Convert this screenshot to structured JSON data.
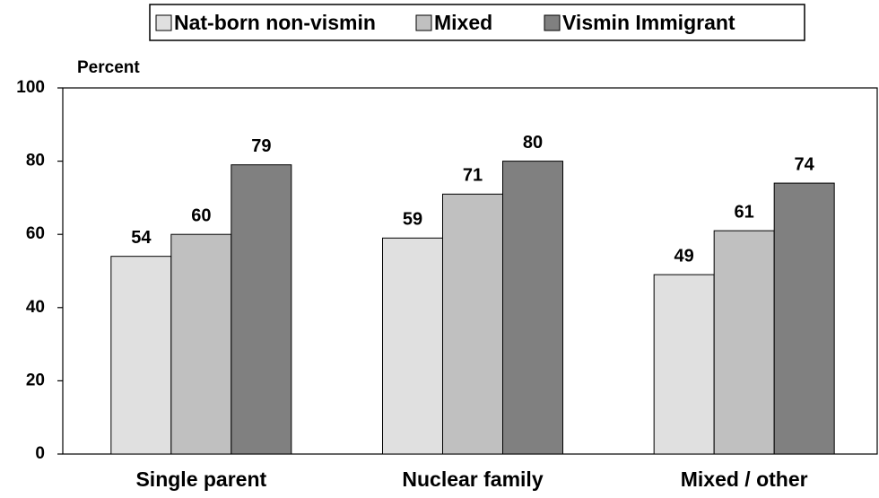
{
  "chart_data": {
    "type": "bar",
    "y_label": "Percent",
    "categories": [
      "Single parent",
      "Nuclear family",
      "Mixed / other"
    ],
    "series": [
      {
        "name": "Nat-born non-vismin",
        "color": "#e0e0e0",
        "values": [
          54,
          59,
          49
        ]
      },
      {
        "name": "Mixed",
        "color": "#c0c0c0",
        "values": [
          60,
          71,
          61
        ]
      },
      {
        "name": "Vismin Immigrant",
        "color": "#808080",
        "values": [
          79,
          80,
          74
        ]
      }
    ],
    "ylim": [
      0,
      100
    ],
    "yticks": [
      0,
      20,
      40,
      60,
      80,
      100
    ],
    "legend": "top"
  }
}
